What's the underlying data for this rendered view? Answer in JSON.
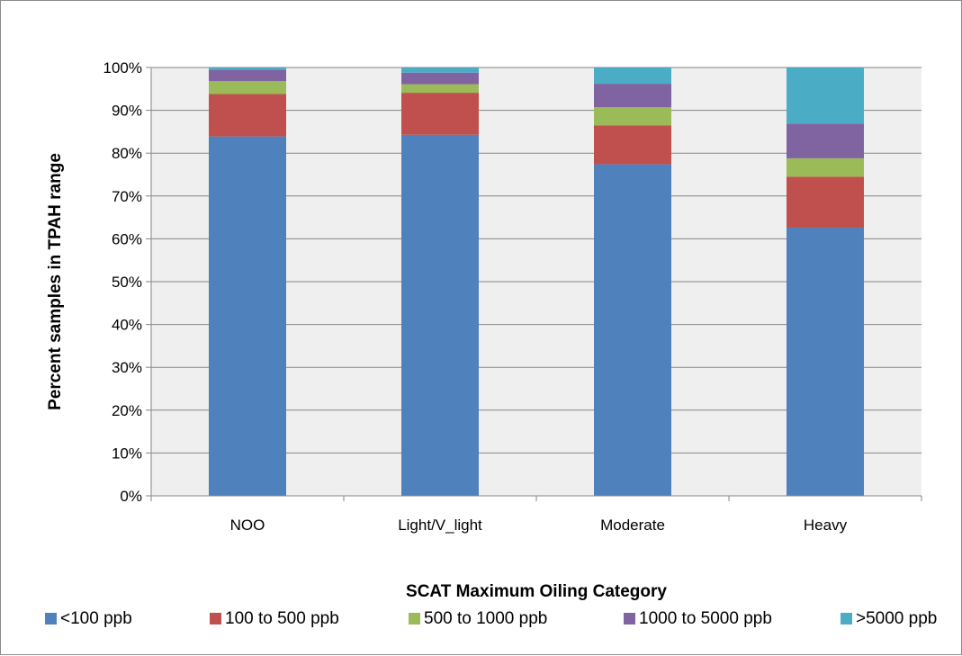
{
  "chart_data": {
    "type": "bar",
    "stacked": true,
    "normalized": true,
    "title": "",
    "xlabel": "SCAT Maximum Oiling Category",
    "ylabel": "Percent samples in TPAH range",
    "categories": [
      "NOO",
      "Light/V_light",
      "Moderate",
      "Heavy"
    ],
    "ylim": [
      0,
      100
    ],
    "yticks": [
      "0%",
      "10%",
      "20%",
      "30%",
      "40%",
      "50%",
      "60%",
      "70%",
      "80%",
      "90%",
      "100%"
    ],
    "grid": "horizontal",
    "legend": "bottom",
    "series": [
      {
        "name": "<100 ppb",
        "color": "#4f81bd",
        "values": [
          83.9,
          84.3,
          77.4,
          62.6
        ]
      },
      {
        "name": "100 to 500 ppb",
        "color": "#c0504d",
        "values": [
          9.9,
          9.8,
          9.1,
          11.9
        ]
      },
      {
        "name": "500 to 1000 ppb",
        "color": "#9bbb59",
        "values": [
          3.0,
          2.0,
          4.2,
          4.3
        ]
      },
      {
        "name": "1000 to 5000 ppb",
        "color": "#8064a2",
        "values": [
          2.7,
          2.7,
          5.5,
          8.1
        ]
      },
      {
        "name": ">5000 ppb",
        "color": "#4bacc6",
        "values": [
          0.5,
          1.2,
          3.8,
          13.1
        ]
      }
    ]
  }
}
